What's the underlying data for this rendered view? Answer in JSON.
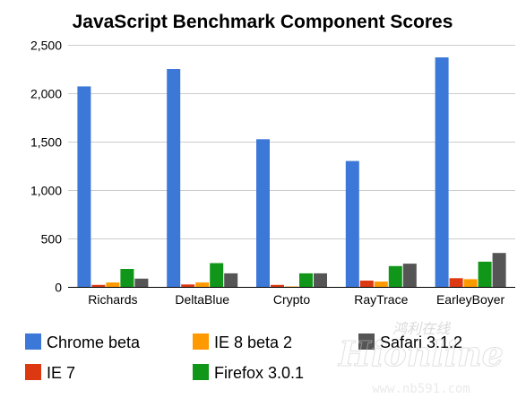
{
  "chart_data": {
    "type": "bar",
    "title": "JavaScript Benchmark Component Scores",
    "xlabel": "",
    "ylabel": "",
    "ylim": [
      0,
      2500
    ],
    "yticks": [
      0,
      500,
      1000,
      1500,
      2000,
      2500
    ],
    "ytick_labels": [
      "0",
      "500",
      "1,000",
      "1,500",
      "2,000",
      "2,500"
    ],
    "grid": true,
    "legend_position": "bottom",
    "categories": [
      "Richards",
      "DeltaBlue",
      "Crypto",
      "RayTrace",
      "EarleyBoyer"
    ],
    "series": [
      {
        "name": "Chrome beta",
        "color": "#3c78d8",
        "values": [
          2070,
          2250,
          1525,
          1300,
          2370
        ]
      },
      {
        "name": "IE 7",
        "color": "#dc3912",
        "values": [
          20,
          25,
          20,
          65,
          90
        ]
      },
      {
        "name": "IE 8 beta 2",
        "color": "#ff9900",
        "values": [
          45,
          45,
          5,
          55,
          80
        ]
      },
      {
        "name": "Firefox 3.0.1",
        "color": "#109618",
        "values": [
          185,
          245,
          140,
          215,
          260
        ]
      },
      {
        "name": "Safari 3.1.2",
        "color": "#555555",
        "values": [
          85,
          140,
          140,
          240,
          350
        ]
      }
    ]
  },
  "watermark": {
    "logo_text": "Hionline",
    "chinese_text": "鸿利在线",
    "url": "www.nb591.com"
  }
}
